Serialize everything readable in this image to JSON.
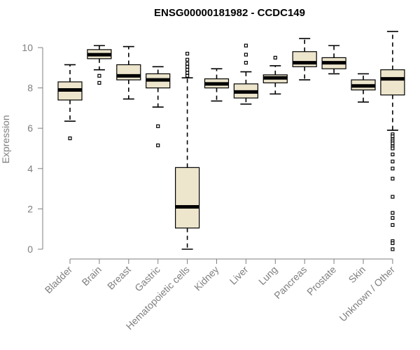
{
  "chart_data": {
    "type": "boxplot",
    "title": "ENSG00000181982 - CCDC149",
    "ylabel": "Expression",
    "xlabel": "",
    "ylim": [
      0,
      10
    ],
    "yticks": [
      0,
      2,
      4,
      6,
      8,
      10
    ],
    "box_fill": "#ede5cc",
    "categories": [
      "Bladder",
      "Brain",
      "Breast",
      "Gastric",
      "Hematopoietic cells",
      "Kidney",
      "Liver",
      "Lung",
      "Pancreas",
      "Prostate",
      "Skin",
      "Unknown / Other"
    ],
    "boxes": [
      {
        "category": "Bladder",
        "whisker_low": 6.35,
        "q1": 7.4,
        "median": 7.9,
        "q3": 8.3,
        "whisker_high": 9.15,
        "outliers": [
          5.5
        ]
      },
      {
        "category": "Brain",
        "whisker_low": 8.9,
        "q1": 9.45,
        "median": 9.65,
        "q3": 9.9,
        "whisker_high": 10.1,
        "outliers": [
          8.6,
          8.25
        ]
      },
      {
        "category": "Breast",
        "whisker_low": 7.45,
        "q1": 8.4,
        "median": 8.6,
        "q3": 9.15,
        "whisker_high": 10.05,
        "outliers": []
      },
      {
        "category": "Gastric",
        "whisker_low": 7.05,
        "q1": 8.0,
        "median": 8.4,
        "q3": 8.7,
        "whisker_high": 9.05,
        "outliers": [
          6.1,
          5.15
        ]
      },
      {
        "category": "Hematopoietic cells",
        "whisker_low": 0.0,
        "q1": 1.05,
        "median": 2.1,
        "q3": 4.05,
        "whisker_high": 8.5,
        "outliers": [
          8.6,
          8.75,
          8.9,
          9.05,
          9.2,
          9.4,
          9.7
        ]
      },
      {
        "category": "Kidney",
        "whisker_low": 7.35,
        "q1": 8.0,
        "median": 8.2,
        "q3": 8.45,
        "whisker_high": 8.95,
        "outliers": []
      },
      {
        "category": "Liver",
        "whisker_low": 7.2,
        "q1": 7.5,
        "median": 7.8,
        "q3": 8.2,
        "whisker_high": 8.8,
        "outliers": [
          9.25,
          9.65,
          10.1
        ]
      },
      {
        "category": "Lung",
        "whisker_low": 7.7,
        "q1": 8.25,
        "median": 8.5,
        "q3": 8.65,
        "whisker_high": 9.1,
        "outliers": [
          9.5
        ]
      },
      {
        "category": "Pancreas",
        "whisker_low": 8.4,
        "q1": 9.05,
        "median": 9.25,
        "q3": 9.8,
        "whisker_high": 10.45,
        "outliers": []
      },
      {
        "category": "Prostate",
        "whisker_low": 8.7,
        "q1": 8.95,
        "median": 9.25,
        "q3": 9.5,
        "whisker_high": 10.1,
        "outliers": []
      },
      {
        "category": "Skin",
        "whisker_low": 7.3,
        "q1": 7.9,
        "median": 8.1,
        "q3": 8.4,
        "whisker_high": 8.7,
        "outliers": []
      },
      {
        "category": "Unknown / Other",
        "whisker_low": 5.9,
        "q1": 7.65,
        "median": 8.45,
        "q3": 8.9,
        "whisker_high": 10.8,
        "outliers": [
          5.7,
          5.6,
          5.45,
          5.35,
          5.25,
          5.1,
          5.0,
          4.7,
          4.35,
          4.0,
          3.5,
          2.6,
          1.8,
          1.55,
          1.2,
          0.4,
          0.3,
          0.0
        ]
      }
    ]
  }
}
